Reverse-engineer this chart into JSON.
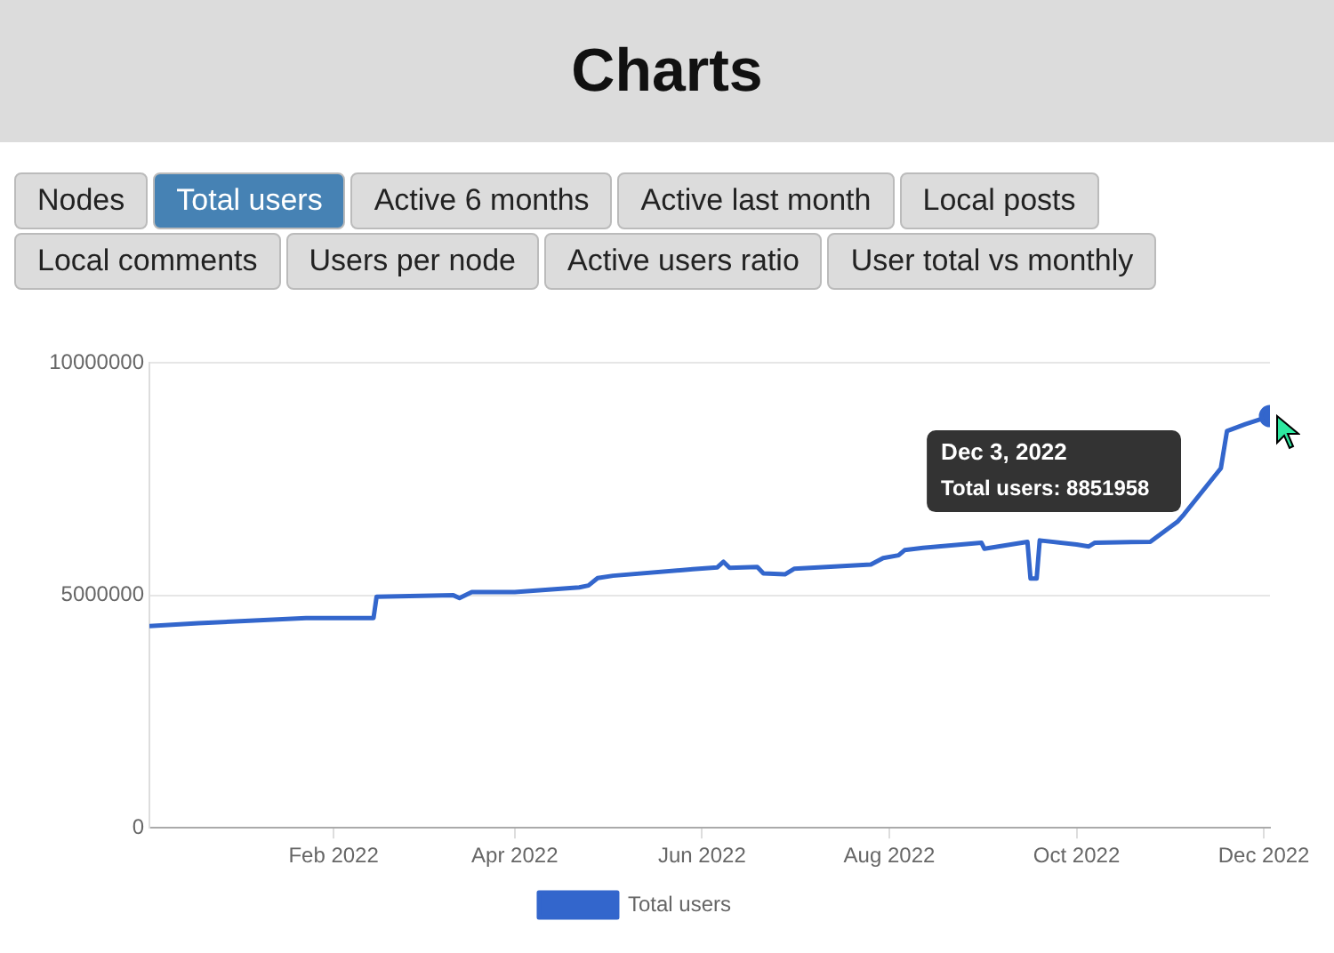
{
  "chart_data": {
    "type": "line",
    "title": "Charts",
    "annotations": [
      "Nodes",
      "Total users",
      "Active 6 months",
      "Active last month",
      "Local posts",
      "Local comments",
      "Users per node",
      "Active users ratio",
      "User total vs monthly",
      "Dec 3, 2022\nTotal users: 8851958"
    ],
    "x": [
      "2021-12-03",
      "2021-12-19",
      "2022-01-23",
      "2022-02-14",
      "2022-02-15",
      "2022-03-12",
      "2022-03-14",
      "2022-03-18",
      "2022-04-01",
      "2022-04-22",
      "2022-04-25",
      "2022-04-28",
      "2022-05-03",
      "2022-05-29",
      "2022-06-06",
      "2022-06-08",
      "2022-06-10",
      "2022-06-19",
      "2022-06-21",
      "2022-06-28",
      "2022-07-01",
      "2022-07-26",
      "2022-07-30",
      "2022-08-04",
      "2022-08-06",
      "2022-08-12",
      "2022-08-31",
      "2022-09-01",
      "2022-09-15",
      "2022-09-16",
      "2022-09-18",
      "2022-09-19",
      "2022-10-01",
      "2022-10-05",
      "2022-10-07",
      "2022-10-25",
      "2022-11-03",
      "2022-11-05",
      "2022-11-17",
      "2022-11-19",
      "2022-11-25",
      "2022-12-03"
    ],
    "series": [
      {
        "name": "Total users",
        "color": "#3366cc",
        "values": [
          4340000,
          4400000,
          4510000,
          4510000,
          4970000,
          5000000,
          4940000,
          5070000,
          5070000,
          5170000,
          5210000,
          5370000,
          5420000,
          5560000,
          5600000,
          5720000,
          5590000,
          5610000,
          5470000,
          5450000,
          5570000,
          5660000,
          5800000,
          5860000,
          5970000,
          6020000,
          6130000,
          6000000,
          6150000,
          5360000,
          5360000,
          6180000,
          6090000,
          6050000,
          6130000,
          6150000,
          6590000,
          6740000,
          7730000,
          8530000,
          8680000,
          8851958
        ]
      }
    ],
    "xlim": [
      "2021-12-03",
      "2022-12-03"
    ],
    "xticks": [
      {
        "value": "2022-02-01",
        "label": "Feb 2022"
      },
      {
        "value": "2022-04-01",
        "label": "Apr 2022"
      },
      {
        "value": "2022-06-01",
        "label": "Jun 2022"
      },
      {
        "value": "2022-08-01",
        "label": "Aug 2022"
      },
      {
        "value": "2022-10-01",
        "label": "Oct 2022"
      },
      {
        "value": "2022-12-01",
        "label": "Dec 2022"
      }
    ],
    "ylim": [
      0,
      10000000
    ],
    "yticks": [
      0,
      5000000,
      10000000
    ],
    "grid": "y",
    "legend": "bottom",
    "marker": "none",
    "line_style": "solid"
  }
}
